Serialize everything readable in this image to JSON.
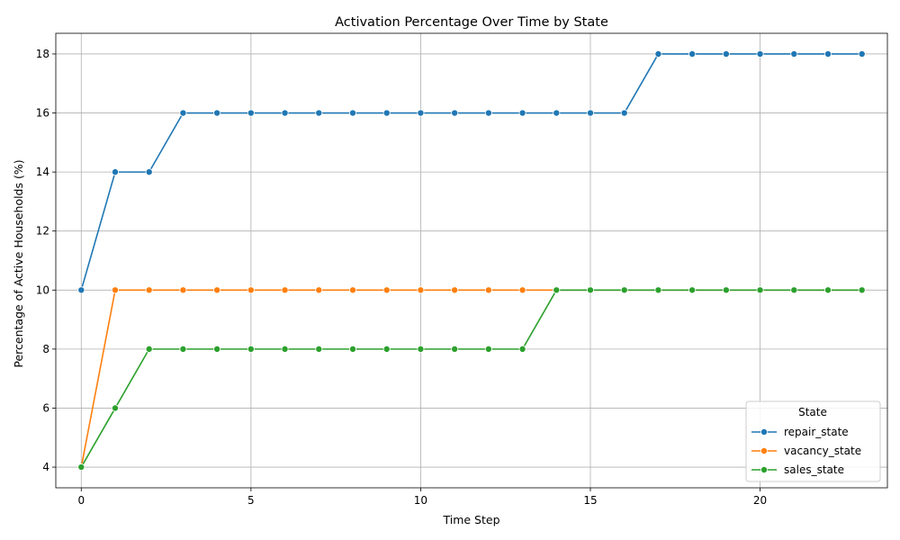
{
  "chart_data": {
    "type": "line",
    "title": "Activation Percentage Over Time by State",
    "xlabel": "Time Step",
    "ylabel": "Percentage of Active Households (%)",
    "xlim": [
      -0.75,
      23.75
    ],
    "ylim": [
      3.3,
      18.7
    ],
    "xticks": [
      0,
      5,
      10,
      15,
      20
    ],
    "yticks": [
      4,
      6,
      8,
      10,
      12,
      14,
      16,
      18
    ],
    "grid": true,
    "legend": {
      "title": "State",
      "placement": "lower-right"
    },
    "x": [
      0,
      1,
      2,
      3,
      4,
      5,
      6,
      7,
      8,
      9,
      10,
      11,
      12,
      13,
      14,
      15,
      16,
      17,
      18,
      19,
      20,
      21,
      22,
      23
    ],
    "series": [
      {
        "name": "repair_state",
        "color": "#1f77b4",
        "values": [
          10,
          14,
          14,
          16,
          16,
          16,
          16,
          16,
          16,
          16,
          16,
          16,
          16,
          16,
          16,
          16,
          16,
          18,
          18,
          18,
          18,
          18,
          18,
          18
        ]
      },
      {
        "name": "vacancy_state",
        "color": "#ff7f0e",
        "values": [
          4,
          10,
          10,
          10,
          10,
          10,
          10,
          10,
          10,
          10,
          10,
          10,
          10,
          10,
          10,
          10,
          10,
          10,
          10,
          10,
          10,
          10,
          10,
          10
        ]
      },
      {
        "name": "sales_state",
        "color": "#2ca02c",
        "values": [
          4,
          6,
          8,
          8,
          8,
          8,
          8,
          8,
          8,
          8,
          8,
          8,
          8,
          8,
          10,
          10,
          10,
          10,
          10,
          10,
          10,
          10,
          10,
          10
        ]
      }
    ]
  }
}
